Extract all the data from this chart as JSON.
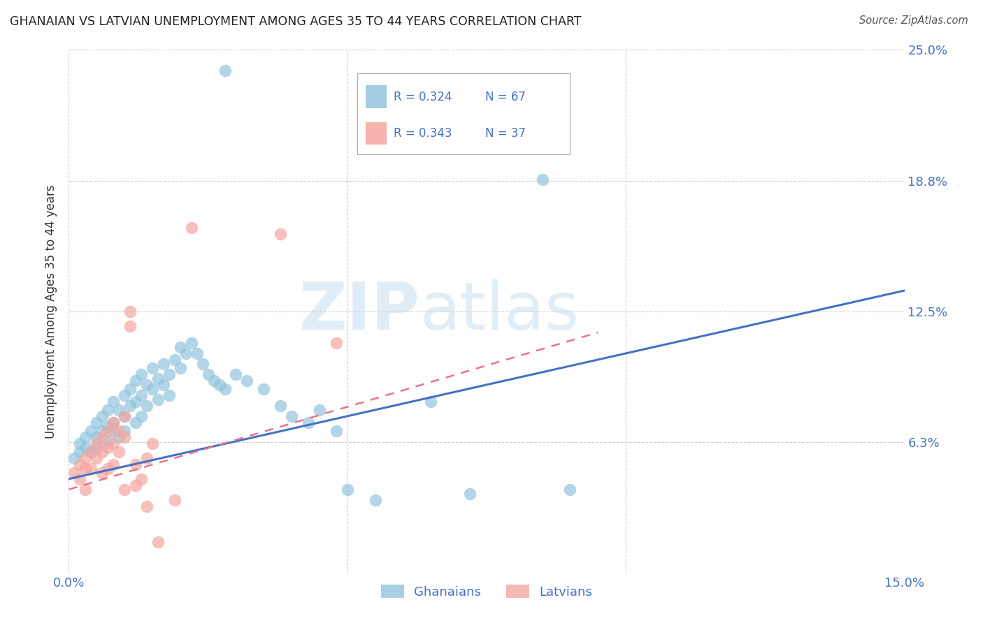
{
  "title": "GHANAIAN VS LATVIAN UNEMPLOYMENT AMONG AGES 35 TO 44 YEARS CORRELATION CHART",
  "source": "Source: ZipAtlas.com",
  "ylabel": "Unemployment Among Ages 35 to 44 years",
  "xlim": [
    0.0,
    0.15
  ],
  "ylim": [
    0.0,
    0.25
  ],
  "ytick_positions": [
    0.0,
    0.0625,
    0.125,
    0.1875,
    0.25
  ],
  "ytick_labels": [
    "",
    "6.3%",
    "12.5%",
    "18.8%",
    "25.0%"
  ],
  "xtick_positions": [
    0.0,
    0.05,
    0.1,
    0.15
  ],
  "xtick_labels": [
    "0.0%",
    "",
    "",
    "15.0%"
  ],
  "ghanaian_color": "#92c5de",
  "latvian_color": "#f4a6a0",
  "trend_ghanaian_color": "#4472c4",
  "trend_latvian_color": "#e8748a",
  "R_ghanaian": 0.324,
  "N_ghanaian": 67,
  "R_latvian": 0.343,
  "N_latvian": 37,
  "watermark_zip": "ZIP",
  "watermark_atlas": "atlas",
  "tick_color": "#4472c4",
  "grid_color": "#d0d0d0",
  "ghanaian_trend": [
    0.045,
    0.135
  ],
  "latvian_trend": [
    0.04,
    0.115
  ],
  "latvian_trend_xmax": 0.095,
  "ghanaian_points": [
    [
      0.001,
      0.055
    ],
    [
      0.002,
      0.062
    ],
    [
      0.002,
      0.058
    ],
    [
      0.003,
      0.065
    ],
    [
      0.003,
      0.06
    ],
    [
      0.004,
      0.068
    ],
    [
      0.004,
      0.058
    ],
    [
      0.005,
      0.072
    ],
    [
      0.005,
      0.065
    ],
    [
      0.005,
      0.06
    ],
    [
      0.006,
      0.075
    ],
    [
      0.006,
      0.068
    ],
    [
      0.007,
      0.078
    ],
    [
      0.007,
      0.07
    ],
    [
      0.007,
      0.063
    ],
    [
      0.008,
      0.082
    ],
    [
      0.008,
      0.072
    ],
    [
      0.008,
      0.068
    ],
    [
      0.009,
      0.078
    ],
    [
      0.009,
      0.065
    ],
    [
      0.01,
      0.085
    ],
    [
      0.01,
      0.075
    ],
    [
      0.01,
      0.068
    ],
    [
      0.011,
      0.088
    ],
    [
      0.011,
      0.08
    ],
    [
      0.012,
      0.092
    ],
    [
      0.012,
      0.082
    ],
    [
      0.012,
      0.072
    ],
    [
      0.013,
      0.095
    ],
    [
      0.013,
      0.085
    ],
    [
      0.013,
      0.075
    ],
    [
      0.014,
      0.09
    ],
    [
      0.014,
      0.08
    ],
    [
      0.015,
      0.098
    ],
    [
      0.015,
      0.088
    ],
    [
      0.016,
      0.093
    ],
    [
      0.016,
      0.083
    ],
    [
      0.017,
      0.1
    ],
    [
      0.017,
      0.09
    ],
    [
      0.018,
      0.095
    ],
    [
      0.018,
      0.085
    ],
    [
      0.019,
      0.102
    ],
    [
      0.02,
      0.108
    ],
    [
      0.02,
      0.098
    ],
    [
      0.021,
      0.105
    ],
    [
      0.022,
      0.11
    ],
    [
      0.023,
      0.105
    ],
    [
      0.024,
      0.1
    ],
    [
      0.025,
      0.095
    ],
    [
      0.026,
      0.092
    ],
    [
      0.027,
      0.09
    ],
    [
      0.028,
      0.088
    ],
    [
      0.03,
      0.095
    ],
    [
      0.032,
      0.092
    ],
    [
      0.035,
      0.088
    ],
    [
      0.038,
      0.08
    ],
    [
      0.04,
      0.075
    ],
    [
      0.043,
      0.072
    ],
    [
      0.045,
      0.078
    ],
    [
      0.048,
      0.068
    ],
    [
      0.05,
      0.04
    ],
    [
      0.055,
      0.035
    ],
    [
      0.028,
      0.24
    ],
    [
      0.085,
      0.188
    ],
    [
      0.065,
      0.082
    ],
    [
      0.072,
      0.038
    ],
    [
      0.09,
      0.04
    ]
  ],
  "latvian_points": [
    [
      0.001,
      0.048
    ],
    [
      0.002,
      0.052
    ],
    [
      0.002,
      0.045
    ],
    [
      0.003,
      0.055
    ],
    [
      0.003,
      0.05
    ],
    [
      0.003,
      0.04
    ],
    [
      0.004,
      0.058
    ],
    [
      0.004,
      0.05
    ],
    [
      0.005,
      0.062
    ],
    [
      0.005,
      0.055
    ],
    [
      0.006,
      0.065
    ],
    [
      0.006,
      0.058
    ],
    [
      0.006,
      0.048
    ],
    [
      0.007,
      0.068
    ],
    [
      0.007,
      0.06
    ],
    [
      0.007,
      0.05
    ],
    [
      0.008,
      0.072
    ],
    [
      0.008,
      0.062
    ],
    [
      0.008,
      0.052
    ],
    [
      0.009,
      0.068
    ],
    [
      0.009,
      0.058
    ],
    [
      0.01,
      0.075
    ],
    [
      0.01,
      0.065
    ],
    [
      0.01,
      0.04
    ],
    [
      0.011,
      0.125
    ],
    [
      0.011,
      0.118
    ],
    [
      0.012,
      0.052
    ],
    [
      0.012,
      0.042
    ],
    [
      0.013,
      0.045
    ],
    [
      0.014,
      0.055
    ],
    [
      0.014,
      0.032
    ],
    [
      0.015,
      0.062
    ],
    [
      0.016,
      0.015
    ],
    [
      0.019,
      0.035
    ],
    [
      0.038,
      0.162
    ],
    [
      0.048,
      0.11
    ],
    [
      0.022,
      0.165
    ]
  ]
}
